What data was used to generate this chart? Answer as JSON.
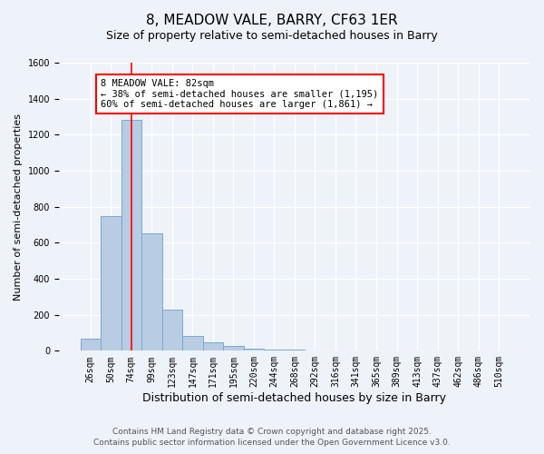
{
  "title": "8, MEADOW VALE, BARRY, CF63 1ER",
  "subtitle": "Size of property relative to semi-detached houses in Barry",
  "xlabel": "Distribution of semi-detached houses by size in Barry",
  "ylabel": "Number of semi-detached properties",
  "categories": [
    "26sqm",
    "50sqm",
    "74sqm",
    "99sqm",
    "123sqm",
    "147sqm",
    "171sqm",
    "195sqm",
    "220sqm",
    "244sqm",
    "268sqm",
    "292sqm",
    "316sqm",
    "341sqm",
    "365sqm",
    "389sqm",
    "413sqm",
    "437sqm",
    "462sqm",
    "486sqm",
    "510sqm"
  ],
  "values": [
    65,
    750,
    1280,
    650,
    230,
    80,
    45,
    25,
    10,
    8,
    5,
    0,
    0,
    0,
    0,
    0,
    0,
    0,
    0,
    0,
    0
  ],
  "bar_color": "#b8cce4",
  "bar_edge_color": "#7aa8cc",
  "red_line_index": 2,
  "annotation_line1": "8 MEADOW VALE: 82sqm",
  "annotation_line2": "← 38% of semi-detached houses are smaller (1,195)",
  "annotation_line3": "60% of semi-detached houses are larger (1,861) →",
  "annotation_box_color": "white",
  "annotation_box_edge_color": "red",
  "ylim": [
    0,
    1600
  ],
  "yticks": [
    0,
    200,
    400,
    600,
    800,
    1000,
    1200,
    1400,
    1600
  ],
  "background_color": "#eef2f9",
  "grid_color": "white",
  "footer_line1": "Contains HM Land Registry data © Crown copyright and database right 2025.",
  "footer_line2": "Contains public sector information licensed under the Open Government Licence v3.0.",
  "title_fontsize": 11,
  "subtitle_fontsize": 9,
  "xlabel_fontsize": 9,
  "ylabel_fontsize": 8,
  "tick_fontsize": 7,
  "annotation_fontsize": 7.5,
  "footer_fontsize": 6.5
}
